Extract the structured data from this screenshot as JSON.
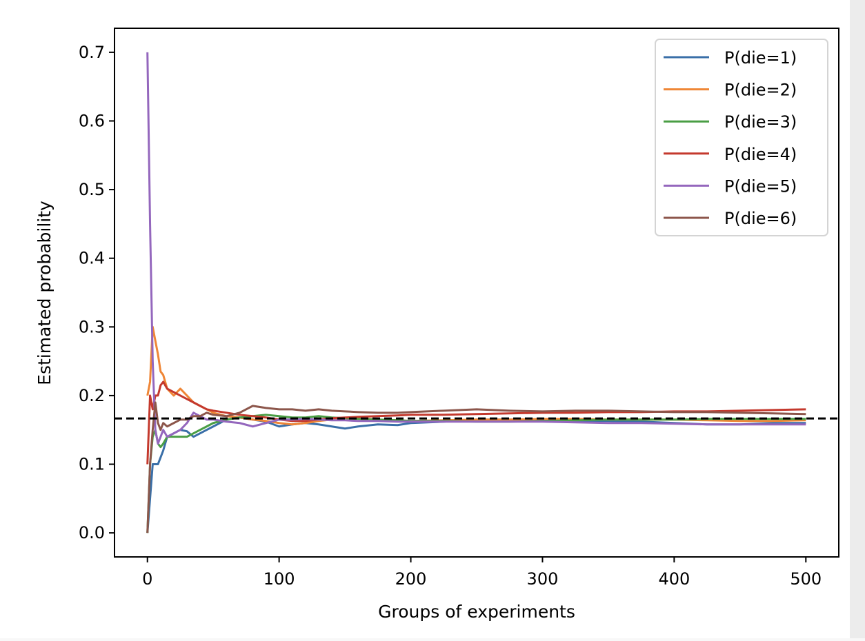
{
  "chart_data": {
    "type": "line",
    "title": "",
    "xlabel": "Groups of experiments",
    "ylabel": "Estimated probability",
    "xlim": [
      -25,
      525
    ],
    "ylim": [
      -0.035,
      0.735
    ],
    "xticks": [
      0,
      100,
      200,
      300,
      400,
      500
    ],
    "xtick_labels": [
      "0",
      "100",
      "200",
      "300",
      "400",
      "500"
    ],
    "yticks": [
      0.0,
      0.1,
      0.2,
      0.3,
      0.4,
      0.5,
      0.6,
      0.7
    ],
    "ytick_labels": [
      "0.0",
      "0.1",
      "0.2",
      "0.3",
      "0.4",
      "0.5",
      "0.6",
      "0.7"
    ],
    "grid": false,
    "legend_position": "top-right",
    "reference_line": {
      "y": 0.1667,
      "style": "dashed",
      "color": "#000000"
    },
    "x": [
      0,
      2,
      4,
      6,
      8,
      10,
      12,
      15,
      20,
      25,
      30,
      35,
      40,
      45,
      50,
      60,
      70,
      80,
      90,
      100,
      110,
      120,
      130,
      140,
      150,
      160,
      175,
      190,
      200,
      225,
      250,
      275,
      300,
      325,
      350,
      375,
      400,
      425,
      450,
      475,
      500
    ],
    "series": [
      {
        "name": "P(die=1)",
        "color": "#3a6fa8",
        "values": [
          0.0,
          0.05,
          0.1,
          0.1,
          0.1,
          0.11,
          0.12,
          0.14,
          0.145,
          0.15,
          0.148,
          0.14,
          0.145,
          0.15,
          0.155,
          0.165,
          0.168,
          0.165,
          0.162,
          0.155,
          0.158,
          0.16,
          0.158,
          0.155,
          0.152,
          0.155,
          0.158,
          0.157,
          0.16,
          0.162,
          0.165,
          0.165,
          0.164,
          0.163,
          0.163,
          0.162,
          0.16,
          0.158,
          0.158,
          0.16,
          0.16
        ]
      },
      {
        "name": "P(die=2)",
        "color": "#ef8636",
        "values": [
          0.2,
          0.22,
          0.3,
          0.28,
          0.26,
          0.235,
          0.23,
          0.21,
          0.2,
          0.21,
          0.2,
          0.19,
          0.185,
          0.18,
          0.175,
          0.17,
          0.168,
          0.165,
          0.163,
          0.16,
          0.158,
          0.16,
          0.163,
          0.165,
          0.166,
          0.167,
          0.165,
          0.164,
          0.163,
          0.164,
          0.165,
          0.165,
          0.166,
          0.166,
          0.165,
          0.165,
          0.165,
          0.164,
          0.163,
          0.163,
          0.164
        ]
      },
      {
        "name": "P(die=3)",
        "color": "#4a9e45",
        "values": [
          0.0,
          0.1,
          0.14,
          0.15,
          0.13,
          0.125,
          0.13,
          0.14,
          0.14,
          0.14,
          0.14,
          0.145,
          0.15,
          0.155,
          0.16,
          0.165,
          0.168,
          0.17,
          0.172,
          0.17,
          0.168,
          0.168,
          0.17,
          0.168,
          0.167,
          0.166,
          0.165,
          0.164,
          0.163,
          0.163,
          0.162,
          0.162,
          0.163,
          0.164,
          0.165,
          0.165,
          0.165,
          0.166,
          0.166,
          0.166,
          0.166
        ]
      },
      {
        "name": "P(die=4)",
        "color": "#c4392d",
        "values": [
          0.1,
          0.2,
          0.18,
          0.2,
          0.2,
          0.215,
          0.22,
          0.21,
          0.205,
          0.2,
          0.195,
          0.19,
          0.185,
          0.18,
          0.178,
          0.175,
          0.172,
          0.17,
          0.168,
          0.165,
          0.163,
          0.163,
          0.165,
          0.167,
          0.168,
          0.169,
          0.17,
          0.171,
          0.172,
          0.172,
          0.173,
          0.174,
          0.175,
          0.175,
          0.176,
          0.176,
          0.177,
          0.177,
          0.178,
          0.179,
          0.18
        ]
      },
      {
        "name": "P(die=5)",
        "color": "#9467bd",
        "values": [
          0.7,
          0.45,
          0.25,
          0.15,
          0.13,
          0.14,
          0.15,
          0.14,
          0.145,
          0.15,
          0.16,
          0.175,
          0.17,
          0.165,
          0.165,
          0.162,
          0.16,
          0.155,
          0.16,
          0.165,
          0.165,
          0.166,
          0.165,
          0.164,
          0.164,
          0.163,
          0.163,
          0.162,
          0.162,
          0.162,
          0.162,
          0.162,
          0.162,
          0.161,
          0.16,
          0.16,
          0.159,
          0.158,
          0.158,
          0.158,
          0.158
        ]
      },
      {
        "name": "P(die=6)",
        "color": "#8c564b",
        "values": [
          0.0,
          0.1,
          0.15,
          0.19,
          0.16,
          0.15,
          0.16,
          0.155,
          0.16,
          0.165,
          0.165,
          0.17,
          0.17,
          0.175,
          0.172,
          0.17,
          0.175,
          0.185,
          0.182,
          0.18,
          0.18,
          0.178,
          0.18,
          0.178,
          0.177,
          0.176,
          0.175,
          0.175,
          0.176,
          0.178,
          0.18,
          0.178,
          0.177,
          0.178,
          0.178,
          0.177,
          0.176,
          0.176,
          0.175,
          0.174,
          0.173
        ]
      }
    ]
  }
}
